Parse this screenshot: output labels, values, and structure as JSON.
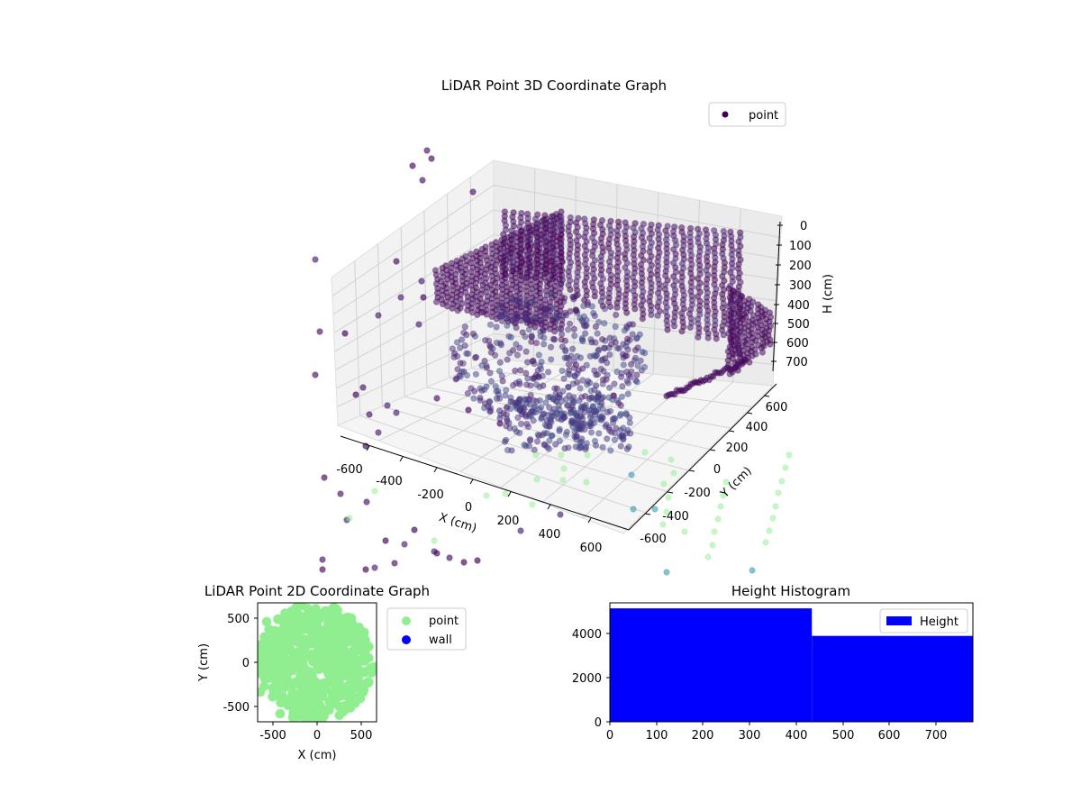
{
  "chart_data": [
    {
      "type": "scatter",
      "title": "LiDAR Point 3D Coordinate Graph",
      "xlabel": "X (cm)",
      "ylabel": "Y (cm)",
      "zlabel": "H (cm)",
      "x_ticks": [
        "-600",
        "-400",
        "-200",
        "0",
        "200",
        "400",
        "600"
      ],
      "y_ticks": [
        "-600",
        "-400",
        "-200",
        "0",
        "200",
        "400",
        "600"
      ],
      "z_ticks": [
        "0",
        "100",
        "200",
        "300",
        "400",
        "500",
        "600",
        "700"
      ],
      "xlim": [
        -650,
        650
      ],
      "ylim": [
        -650,
        650
      ],
      "zlim": [
        0,
        750
      ],
      "z_inverted": true,
      "legend": {
        "placement": "top-right",
        "entries": [
          {
            "label": "point",
            "color": "#440154"
          }
        ]
      },
      "colormap": "viridis",
      "grid": true
    },
    {
      "type": "scatter",
      "title": "LiDAR Point 2D Coordinate Graph",
      "xlabel": "X (cm)",
      "ylabel": "Y (cm)",
      "x_ticks": [
        "-500",
        "0",
        "500"
      ],
      "y_ticks": [
        "500",
        "0",
        "-500"
      ],
      "xlim": [
        -650,
        650
      ],
      "ylim": [
        -650,
        650
      ],
      "legend": {
        "placement": "outside-right",
        "entries": [
          {
            "label": "point",
            "color": "#90ee90"
          },
          {
            "label": "wall",
            "color": "#0000ff"
          }
        ]
      },
      "grid": false
    },
    {
      "type": "bar",
      "title": "Height Histogram",
      "x_ticks": [
        "0",
        "100",
        "200",
        "300",
        "400",
        "500",
        "600",
        "700"
      ],
      "y_ticks": [
        "0",
        "2000",
        "4000"
      ],
      "bins": [
        {
          "from": 0,
          "to": 434,
          "count": 5150
        },
        {
          "from": 434,
          "to": 780,
          "count": 3900
        }
      ],
      "xlim": [
        0,
        780
      ],
      "ylim": [
        0,
        5400
      ],
      "color": "#0000ff",
      "legend": {
        "placement": "top-right",
        "entries": [
          {
            "label": "Height",
            "color": "#0000ff"
          }
        ]
      },
      "grid": false
    }
  ]
}
